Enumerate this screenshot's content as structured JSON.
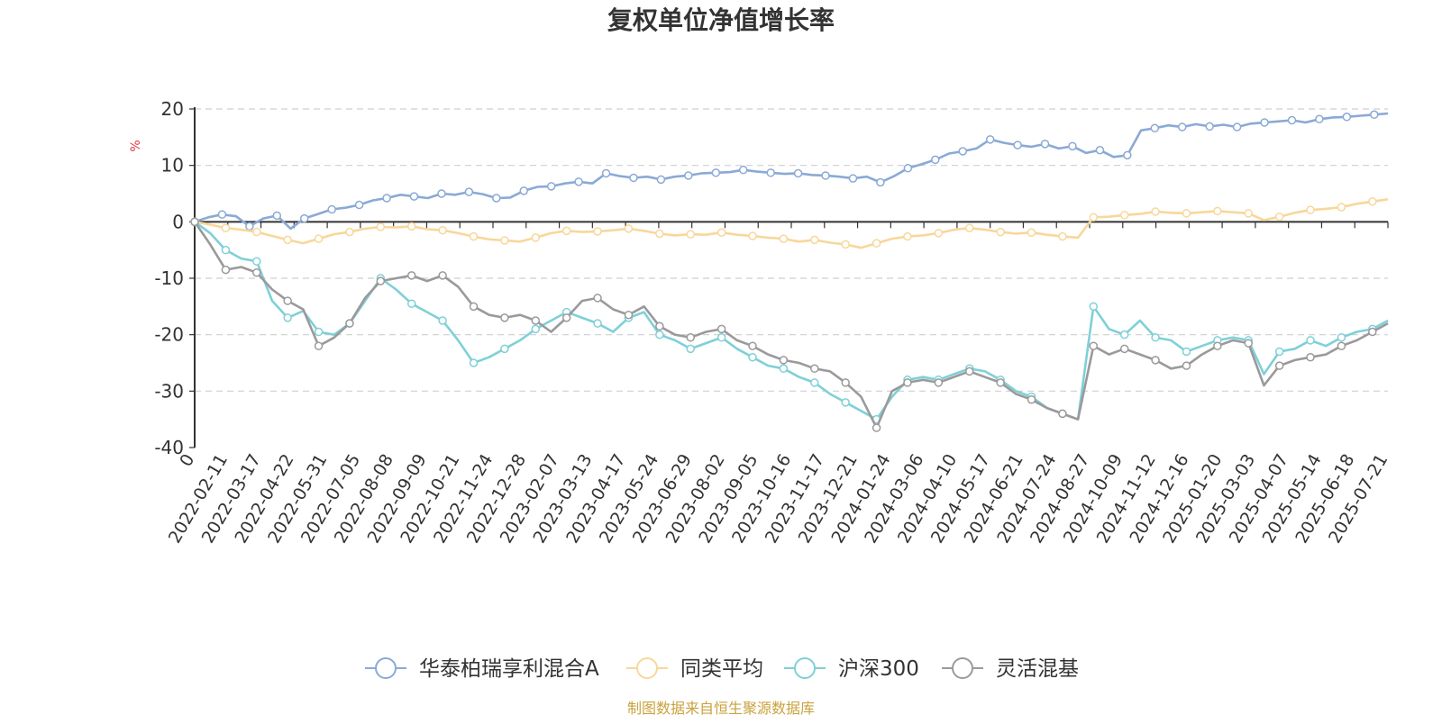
{
  "chart_data": {
    "type": "line",
    "title": "复权单位净值增长率",
    "ylabel": "%",
    "ylim": [
      -40,
      20
    ],
    "y_ticks": [
      20,
      10,
      0,
      -10,
      -20,
      -30,
      -40
    ],
    "grid": true,
    "legend_position": "bottom-center",
    "source": "制图数据来自恒生聚源数据库",
    "x_tick_labels": [
      "0",
      "2022-02-11",
      "2022-03-17",
      "2022-04-22",
      "2022-05-31",
      "2022-07-05",
      "2022-08-08",
      "2022-09-09",
      "2022-10-21",
      "2022-11-24",
      "2022-12-28",
      "2023-02-07",
      "2023-03-13",
      "2023-04-17",
      "2023-05-24",
      "2023-06-29",
      "2023-08-02",
      "2023-09-05",
      "2023-10-16",
      "2023-11-17",
      "2023-12-21",
      "2024-01-24",
      "2024-03-06",
      "2024-04-10",
      "2024-05-17",
      "2024-06-21",
      "2024-07-24",
      "2024-08-27",
      "2024-10-09",
      "2024-11-12",
      "2024-12-16",
      "2025-01-20",
      "2025-03-03",
      "2025-04-07",
      "2025-05-14",
      "2025-06-18",
      "2025-07-21"
    ],
    "series": [
      {
        "name": "华泰柏瑞享利混合A",
        "color": "#8aa9d6",
        "values": [
          0,
          0.8,
          1.3,
          1.0,
          -0.8,
          0.6,
          1.1,
          -1.2,
          0.6,
          1.4,
          2.2,
          2.5,
          3.0,
          3.8,
          4.2,
          4.8,
          4.5,
          4.2,
          5.0,
          4.8,
          5.3,
          4.9,
          4.2,
          4.3,
          5.5,
          6.2,
          6.3,
          6.8,
          7.1,
          6.8,
          8.6,
          8.1,
          7.8,
          8.0,
          7.5,
          8.0,
          8.2,
          8.6,
          8.7,
          8.8,
          9.2,
          8.9,
          8.7,
          8.5,
          8.6,
          8.3,
          8.2,
          8.0,
          7.7,
          8.0,
          7.0,
          8.1,
          9.5,
          10.2,
          11.0,
          12.1,
          12.5,
          13.0,
          14.6,
          14.0,
          13.6,
          13.3,
          13.8,
          13.0,
          13.4,
          12.2,
          12.7,
          11.5,
          11.8,
          16.2,
          16.6,
          17.1,
          16.8,
          17.3,
          16.9,
          17.2,
          16.8,
          17.4,
          17.6,
          17.8,
          18.0,
          17.6,
          18.2,
          18.5,
          18.6,
          18.8,
          19.0,
          19.2
        ]
      },
      {
        "name": "同类平均",
        "color": "#f8d79a",
        "values": [
          0,
          -0.5,
          -1.1,
          -1.4,
          -1.8,
          -2.5,
          -3.2,
          -3.8,
          -3.0,
          -2.2,
          -1.8,
          -1.2,
          -0.9,
          -1.0,
          -0.8,
          -1.3,
          -1.5,
          -2.0,
          -2.6,
          -3.1,
          -3.3,
          -3.5,
          -2.8,
          -2.0,
          -1.6,
          -1.8,
          -1.7,
          -1.5,
          -1.2,
          -1.6,
          -2.1,
          -2.4,
          -2.2,
          -2.3,
          -1.9,
          -2.3,
          -2.5,
          -2.8,
          -3.0,
          -3.5,
          -3.2,
          -3.7,
          -4.0,
          -4.6,
          -3.8,
          -3.0,
          -2.6,
          -2.4,
          -2.0,
          -1.4,
          -1.1,
          -1.4,
          -1.8,
          -2.1,
          -1.9,
          -2.3,
          -2.6,
          -2.8,
          0.8,
          0.9,
          1.2,
          1.4,
          1.8,
          1.6,
          1.5,
          1.7,
          1.9,
          1.7,
          1.5,
          0.3,
          0.9,
          1.6,
          2.1,
          2.3,
          2.6,
          3.2,
          3.6,
          4.0
        ]
      },
      {
        "name": "沪深300",
        "color": "#7fd0d8",
        "values": [
          0,
          -2.0,
          -5.0,
          -6.5,
          -7.0,
          -14.0,
          -17.0,
          -15.8,
          -19.5,
          -20.0,
          -18.0,
          -14.0,
          -10.0,
          -12.0,
          -14.5,
          -16.0,
          -17.5,
          -21.0,
          -25.0,
          -24.0,
          -22.5,
          -21.0,
          -19.0,
          -17.5,
          -16.0,
          -17.0,
          -18.0,
          -19.5,
          -17.0,
          -16.0,
          -20.0,
          -21.0,
          -22.5,
          -21.5,
          -20.5,
          -22.5,
          -24.0,
          -25.5,
          -26.0,
          -27.5,
          -28.5,
          -30.5,
          -32.0,
          -33.5,
          -35.0,
          -31.0,
          -28.0,
          -27.5,
          -28.0,
          -27.0,
          -26.0,
          -26.5,
          -28.0,
          -30.0,
          -31.0,
          -33.0,
          -34.0,
          -35.0,
          -15.0,
          -19.0,
          -20.0,
          -17.5,
          -20.5,
          -21.0,
          -23.0,
          -22.0,
          -21.0,
          -20.5,
          -21.0,
          -27.0,
          -23.0,
          -22.5,
          -21.0,
          -22.0,
          -20.5,
          -19.5,
          -19.0,
          -17.5
        ]
      },
      {
        "name": "灵活混基",
        "color": "#9a9a9a",
        "values": [
          0,
          -4.0,
          -8.5,
          -8.0,
          -9.0,
          -12.0,
          -14.0,
          -15.5,
          -22.0,
          -20.5,
          -18.0,
          -13.5,
          -10.5,
          -10.0,
          -9.5,
          -10.5,
          -9.5,
          -11.5,
          -15.0,
          -16.5,
          -17.0,
          -16.5,
          -17.5,
          -19.5,
          -17.0,
          -14.0,
          -13.5,
          -15.5,
          -16.5,
          -15.0,
          -18.5,
          -20.0,
          -20.5,
          -19.5,
          -19.0,
          -21.0,
          -22.0,
          -23.5,
          -24.5,
          -25.0,
          -26.0,
          -26.5,
          -28.5,
          -31.0,
          -36.5,
          -30.0,
          -28.5,
          -28.0,
          -28.5,
          -27.5,
          -26.5,
          -27.5,
          -28.5,
          -30.5,
          -31.5,
          -33.0,
          -34.0,
          -35.0,
          -22.0,
          -23.5,
          -22.5,
          -23.5,
          -24.5,
          -26.0,
          -25.5,
          -23.5,
          -22.0,
          -21.0,
          -21.5,
          -29.0,
          -25.5,
          -24.5,
          -24.0,
          -23.5,
          -22.0,
          -21.0,
          -19.5,
          -18.0
        ]
      }
    ]
  }
}
